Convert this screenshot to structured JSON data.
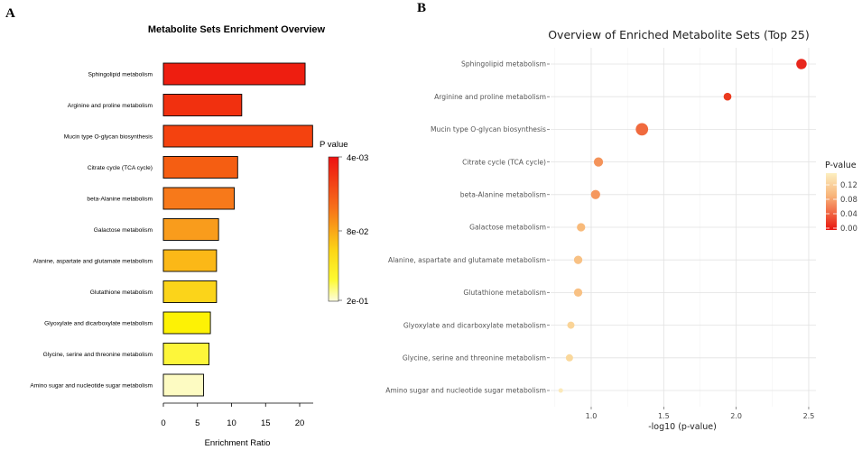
{
  "panels": {
    "a_letter": "A",
    "b_letter": "B"
  },
  "chart_data": [
    {
      "type": "bar",
      "orientation": "horizontal",
      "title": "Metabolite Sets Enrichment Overview",
      "xlabel": "Enrichment Ratio",
      "ylabel": "",
      "xlim": [
        0,
        22
      ],
      "xticks": [
        0,
        5,
        10,
        15,
        20
      ],
      "categories": [
        "Sphingolipid metabolism",
        "Arginine and proline metabolism",
        "Mucin type O-glycan biosynthesis",
        "Citrate cycle (TCA cycle)",
        "beta-Alanine metabolism",
        "Galactose metabolism",
        "Alanine, aspartate and glutamate metabolism",
        "Glutathione metabolism",
        "Glyoxylate and dicarboxylate metabolism",
        "Glycine, serine and threonine metabolism",
        "Amino sugar and nucleotide sugar metabolism"
      ],
      "values": [
        20.8,
        11.5,
        21.9,
        10.9,
        10.4,
        8.1,
        7.8,
        7.8,
        6.9,
        6.7,
        5.9
      ],
      "colors": [
        "#ee1e10",
        "#f1300f",
        "#f4420f",
        "#f55e12",
        "#f7791a",
        "#f99c1c",
        "#fbb817",
        "#fbd41a",
        "#fdf205",
        "#fdf63a",
        "#fdfbc2"
      ],
      "legend": {
        "title": "P value",
        "labels": [
          "4e-03",
          "8e-02",
          "2e-01"
        ],
        "placement": "right"
      }
    },
    {
      "type": "scatter",
      "title": "Overview of Enriched Metabolite Sets (Top 25)",
      "xlabel": "-log10 (p-value)",
      "ylabel": "",
      "xlim": [
        0.72,
        2.55
      ],
      "xticks": [
        "1.0",
        "1.5",
        "2.0",
        "2.5"
      ],
      "categories": [
        "Sphingolipid metabolism",
        "Arginine and proline metabolism",
        "Mucin type O-glycan biosynthesis",
        "Citrate cycle (TCA cycle)",
        "beta-Alanine metabolism",
        "Galactose metabolism",
        "Alanine, aspartate and glutamate metabolism",
        "Glutathione metabolism",
        "Glyoxylate and dicarboxylate metabolism",
        "Glycine, serine and threonine metabolism",
        "Amino sugar and nucleotide sugar metabolism"
      ],
      "x": [
        2.45,
        1.94,
        1.35,
        1.05,
        1.03,
        0.93,
        0.91,
        0.91,
        0.86,
        0.85,
        0.79
      ],
      "p_value": [
        0.004,
        0.011,
        0.045,
        0.089,
        0.093,
        0.117,
        0.123,
        0.123,
        0.138,
        0.141,
        0.162
      ],
      "point_size": [
        3.6,
        2.7,
        4.3,
        3.2,
        3.2,
        2.9,
        2.9,
        2.9,
        2.5,
        2.5,
        1.6
      ],
      "colors": [
        "#e8261c",
        "#eb3a1e",
        "#f06a3e",
        "#f4935a",
        "#f5975d",
        "#f8ba7a",
        "#f8c184",
        "#f8c184",
        "#fad497",
        "#fad89c",
        "#fbe9ba"
      ],
      "legend": {
        "title": "P-value",
        "labels": [
          "0.12",
          "0.08",
          "0.04",
          "0.00"
        ],
        "placement": "right"
      }
    }
  ]
}
